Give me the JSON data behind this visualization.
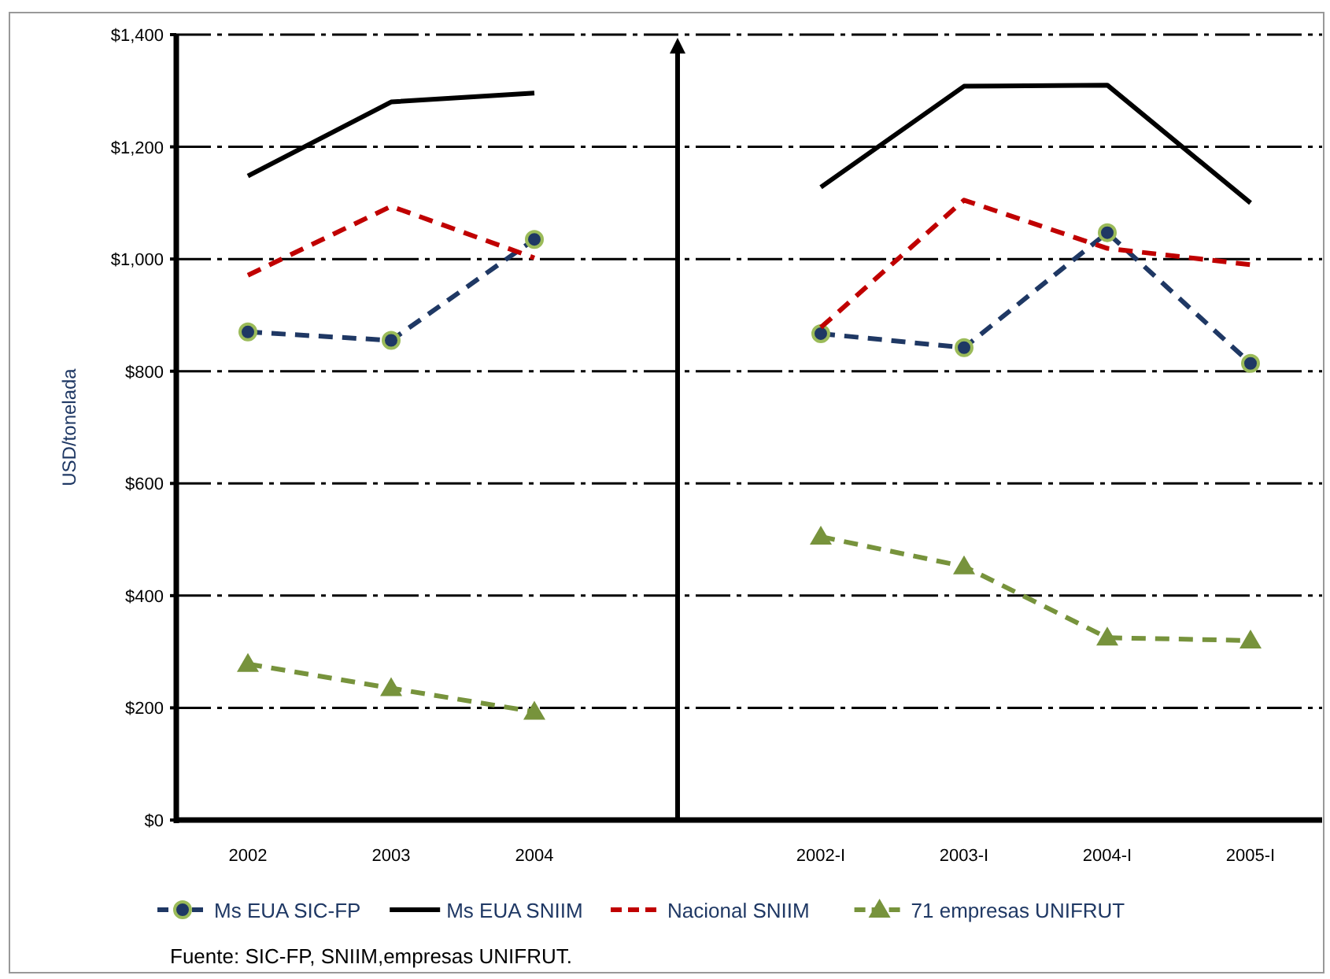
{
  "chart_data": {
    "type": "line",
    "categories": [
      "2002",
      "2003",
      "2004",
      null,
      "2002-I",
      "2003-I",
      "2004-I",
      "2005-I"
    ],
    "series": [
      {
        "name": "Ms EUA SIC-FP",
        "color": "#1f3864",
        "marker": "circle",
        "line_style": "dashed",
        "values": [
          870,
          855,
          1035,
          null,
          867,
          842,
          1047,
          814
        ]
      },
      {
        "name": "Ms EUA SNIIM",
        "color": "#000000",
        "marker": "none",
        "line_style": "solid",
        "values": [
          1148,
          1280,
          1296,
          null,
          1128,
          1308,
          1310,
          1100
        ]
      },
      {
        "name": "Nacional SNIIM",
        "color": "#c00000",
        "marker": "none",
        "line_style": "dashed",
        "values": [
          971,
          1094,
          1002,
          null,
          878,
          1105,
          1019,
          990
        ]
      },
      {
        "name": "71 empresas UNIFRUT",
        "color": "#77933c",
        "marker": "triangle",
        "line_style": "dashed",
        "values": [
          278,
          235,
          193,
          null,
          505,
          452,
          325,
          320
        ]
      }
    ],
    "ylabel": "USD/tonelada",
    "ylim": [
      0,
      1400
    ],
    "yticks": [
      {
        "value": 0,
        "label": "$0"
      },
      {
        "value": 200,
        "label": "$200"
      },
      {
        "value": 400,
        "label": "$400"
      },
      {
        "value": 600,
        "label": "$600"
      },
      {
        "value": 800,
        "label": "$800"
      },
      {
        "value": 1000,
        "label": "$1,000"
      },
      {
        "value": 1200,
        "label": "$1,200"
      },
      {
        "value": 1400,
        "label": "$1,400"
      }
    ],
    "grid": "y",
    "legend": "bottom",
    "annotations": [
      "Fuente: SIC-FP, SNIIM,empresas UNIFRUT."
    ]
  }
}
